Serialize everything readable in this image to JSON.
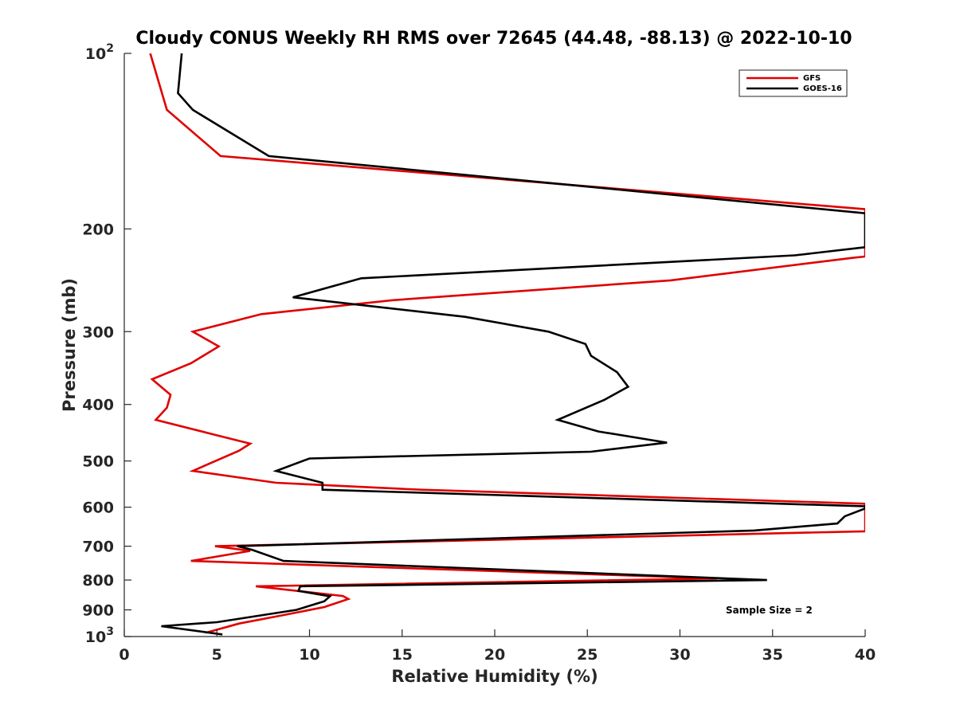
{
  "chart_data": {
    "type": "line",
    "title": "Cloudy CONUS Weekly RH RMS over 72645 (44.48, -88.13) @ 2022-10-10",
    "xlabel": "Relative Humidity (%)",
    "ylabel": "Pressure (mb)",
    "xlim": [
      0,
      40
    ],
    "ylim": [
      100,
      1000
    ],
    "y_scale": "log",
    "y_reversed": true,
    "grid": false,
    "x_ticks": [
      "0",
      "5",
      "10",
      "15",
      "20",
      "25",
      "30",
      "35",
      "40"
    ],
    "y_ticks": [
      {
        "value": 100,
        "base": "10",
        "exp": "2"
      },
      {
        "value": 200,
        "label": "200"
      },
      {
        "value": 300,
        "label": "300"
      },
      {
        "value": 400,
        "label": "400"
      },
      {
        "value": 500,
        "label": "500"
      },
      {
        "value": 600,
        "label": "600"
      },
      {
        "value": 700,
        "label": "700"
      },
      {
        "value": 800,
        "label": "800"
      },
      {
        "value": 900,
        "label": "900"
      },
      {
        "value": 1000,
        "base": "10",
        "exp": "3"
      }
    ],
    "legend_position": "top-right",
    "annotation": "Sample Size = 2",
    "series": [
      {
        "name": "GFS",
        "color": "#e00000",
        "points": [
          [
            1.4,
            100
          ],
          [
            2.3,
            125
          ],
          [
            5.2,
            150
          ],
          [
            40,
            185
          ],
          [
            40,
            223
          ],
          [
            39.4,
            224
          ],
          [
            29.5,
            245
          ],
          [
            14.5,
            265
          ],
          [
            7.4,
            280
          ],
          [
            3.7,
            300
          ],
          [
            5.1,
            318
          ],
          [
            3.6,
            340
          ],
          [
            1.5,
            362
          ],
          [
            2.5,
            385
          ],
          [
            2.3,
            405
          ],
          [
            1.7,
            425
          ],
          [
            4.8,
            450
          ],
          [
            6.8,
            467
          ],
          [
            6.2,
            480
          ],
          [
            3.7,
            520
          ],
          [
            8.2,
            545
          ],
          [
            16.0,
            560
          ],
          [
            40,
            592
          ],
          [
            40,
            660
          ],
          [
            4.9,
            700
          ],
          [
            6.8,
            713
          ],
          [
            3.6,
            742
          ],
          [
            32.0,
            795
          ],
          [
            7.1,
            820
          ],
          [
            11.8,
            852
          ],
          [
            12.1,
            862
          ],
          [
            10.8,
            890
          ],
          [
            8.5,
            920
          ],
          [
            6.2,
            950
          ],
          [
            4.4,
            985
          ]
        ]
      },
      {
        "name": "GOES-16",
        "color": "#000000",
        "points": [
          [
            3.1,
            100
          ],
          [
            2.9,
            117
          ],
          [
            3.7,
            125
          ],
          [
            7.8,
            150
          ],
          [
            40,
            188
          ],
          [
            40,
            215
          ],
          [
            36.2,
            222
          ],
          [
            12.8,
            243
          ],
          [
            9.1,
            262
          ],
          [
            18.4,
            283
          ],
          [
            22.9,
            300
          ],
          [
            24.9,
            315
          ],
          [
            25.2,
            330
          ],
          [
            26.6,
            352
          ],
          [
            27.2,
            373
          ],
          [
            25.9,
            393
          ],
          [
            23.4,
            425
          ],
          [
            25.6,
            445
          ],
          [
            29.3,
            465
          ],
          [
            25.2,
            482
          ],
          [
            10.0,
            495
          ],
          [
            8.2,
            520
          ],
          [
            10.7,
            545
          ],
          [
            10.7,
            560
          ],
          [
            40,
            598
          ],
          [
            40,
            603
          ],
          [
            38.9,
            622
          ],
          [
            38.5,
            640
          ],
          [
            34.0,
            658
          ],
          [
            6.1,
            700
          ],
          [
            6.9,
            710
          ],
          [
            8.6,
            742
          ],
          [
            34.7,
            800
          ],
          [
            9.5,
            820
          ],
          [
            9.4,
            835
          ],
          [
            11.1,
            853
          ],
          [
            10.8,
            870
          ],
          [
            9.3,
            900
          ],
          [
            5.0,
            945
          ],
          [
            2.0,
            960
          ],
          [
            5.3,
            992
          ]
        ]
      }
    ]
  }
}
